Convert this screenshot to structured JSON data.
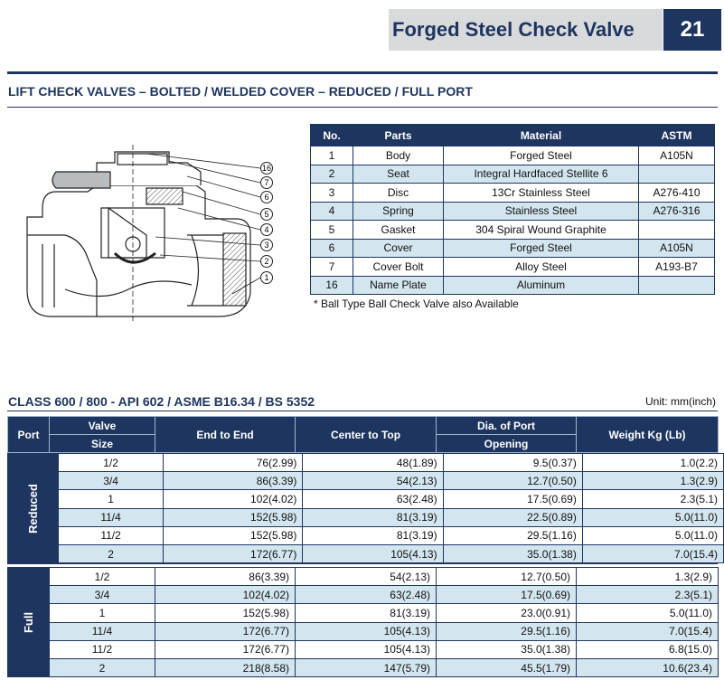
{
  "header": {
    "title": "Forged Steel Check Valve",
    "page_number": "21"
  },
  "subtitle": "LIFT CHECK VALVES – BOLTED / WELDED COVER – REDUCED / FULL PORT",
  "drawing": {
    "callouts": [
      "16",
      "7",
      "6",
      "5",
      "4",
      "3",
      "2",
      "1"
    ]
  },
  "parts_table": {
    "headers": [
      "No.",
      "Parts",
      "Material",
      "ASTM"
    ],
    "rows": [
      [
        "1",
        "Body",
        "Forged Steel",
        "A105N"
      ],
      [
        "2",
        "Seat",
        "Integral Hardfaced Stellite 6",
        ""
      ],
      [
        "3",
        "Disc",
        "13Cr Stainless Steel",
        "A276-410"
      ],
      [
        "4",
        "Spring",
        "Stainless Steel",
        "A276-316"
      ],
      [
        "5",
        "Gasket",
        "304 Spiral Wound Graphite",
        ""
      ],
      [
        "6",
        "Cover",
        "Forged Steel",
        "A105N"
      ],
      [
        "7",
        "Cover Bolt",
        "Alloy Steel",
        "A193-B7"
      ],
      [
        "16",
        "Name Plate",
        "Aluminum",
        ""
      ]
    ],
    "note": "* Ball Type Ball Check Valve also Available"
  },
  "class_section": {
    "title": "CLASS 600 / 800 - API 602 / ASME B16.34 / BS 5352",
    "unit": "Unit: mm(inch)",
    "headers": {
      "port": "Port",
      "valve": "Valve",
      "size": "Size",
      "end_to_end": "End to End",
      "center_to_top": "Center to Top",
      "dia_port": "Dia. of Port",
      "opening": "Opening",
      "weight": "Weight Kg (Lb)"
    },
    "reduced": {
      "label": "Reduced",
      "rows": [
        [
          "1/2",
          "76(2.99)",
          "48(1.89)",
          "9.5(0.37)",
          "1.0(2.2)"
        ],
        [
          "3/4",
          "86(3.39)",
          "54(2.13)",
          "12.7(0.50)",
          "1.3(2.9)"
        ],
        [
          "1",
          "102(4.02)",
          "63(2.48)",
          "17.5(0.69)",
          "2.3(5.1)"
        ],
        [
          "11/4",
          "152(5.98)",
          "81(3.19)",
          "22.5(0.89)",
          "5.0(11.0)"
        ],
        [
          "11/2",
          "152(5.98)",
          "81(3.19)",
          "29.5(1.16)",
          "5.0(11.0)"
        ],
        [
          "2",
          "172(6.77)",
          "105(4.13)",
          "35.0(1.38)",
          "7.0(15.4)"
        ]
      ]
    },
    "full": {
      "label": "Full",
      "rows": [
        [
          "1/2",
          "86(3.39)",
          "54(2.13)",
          "12.7(0.50)",
          "1.3(2.9)"
        ],
        [
          "3/4",
          "102(4.02)",
          "63(2.48)",
          "17.5(0.69)",
          "2.3(5.1)"
        ],
        [
          "1",
          "152(5.98)",
          "81(3.19)",
          "23.0(0.91)",
          "5.0(11.0)"
        ],
        [
          "11/4",
          "172(6.77)",
          "105(4.13)",
          "29.5(1.16)",
          "7.0(15.4)"
        ],
        [
          "11/2",
          "172(6.77)",
          "105(4.13)",
          "35.0(1.38)",
          "6.8(15.0)"
        ],
        [
          "2",
          "218(8.58)",
          "147(5.79)",
          "45.5(1.79)",
          "10.6(23.4)"
        ]
      ]
    }
  }
}
